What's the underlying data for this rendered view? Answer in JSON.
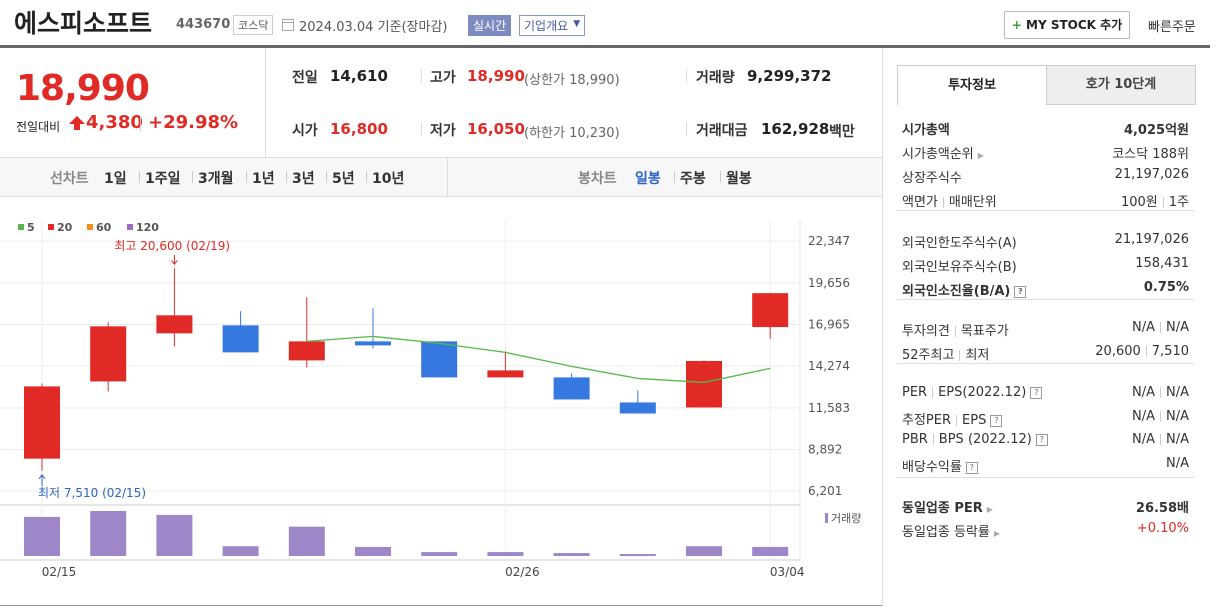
{
  "header": {
    "name": "에스피소프트",
    "code": "443670",
    "market": "코스닥",
    "date": "2024.03.04 기준(장마감)",
    "realtime": "실시간",
    "company": "기업개요",
    "mystock": "MY STOCK 추가",
    "quickorder": "빠른주문"
  },
  "price": {
    "current": "18,990",
    "change_label": "전일대비",
    "change": "4,380",
    "rate": "+29.98%"
  },
  "quote": [
    {
      "label": "전일",
      "value": "14,610"
    },
    {
      "label": "고가",
      "value": "18,990",
      "note": "(상한가 18,990)"
    },
    {
      "label": "거래량",
      "value": "9,299,372"
    },
    {
      "label": "시가",
      "value": "16,800"
    },
    {
      "label": "저가",
      "value": "16,050",
      "note": "(하한가 10,230)"
    },
    {
      "label": "거래대금",
      "value": "162,928",
      "unit": "백만"
    }
  ],
  "chart_tabs": {
    "line_label": "선차트",
    "periods": [
      "1일",
      "1주일",
      "3개월",
      "1년",
      "3년",
      "5년",
      "10년"
    ],
    "candle_label": "봉차트",
    "candles": [
      "일봉",
      "주봉",
      "월봉"
    ]
  },
  "chart_data": {
    "type": "candlestick",
    "categories": [
      "02/15",
      null,
      null,
      null,
      null,
      null,
      null,
      "02/26",
      null,
      null,
      null,
      "03/04"
    ],
    "open": [
      8300,
      13289,
      16395,
      16912,
      14648,
      15877,
      15877,
      13548,
      13548,
      11930,
      11607,
      16800
    ],
    "high": [
      13160,
      17106,
      20600,
      17818,
      18724,
      18012,
      15877,
      15230,
      13807,
      12707,
      14648,
      18990
    ],
    "low": [
      7510,
      12642,
      15554,
      15165,
      14195,
      15424,
      13548,
      13548,
      12124,
      11219,
      11607,
      16050
    ],
    "close": [
      12966,
      16847,
      17559,
      15165,
      15877,
      15618,
      13548,
      14001,
      12124,
      11219,
      14610,
      18990
    ],
    "up_color": "#e12a26",
    "down_color": "#3478e0",
    "series": [
      {
        "name": "5",
        "color": "#54b948",
        "values": [
          null,
          null,
          null,
          null,
          15877,
          16200,
          15748,
          15165,
          14260,
          13483,
          13224,
          14131
        ]
      },
      {
        "name": "20",
        "color": "#e12a26"
      },
      {
        "name": "60",
        "color": "#f68e1e"
      },
      {
        "name": "120",
        "color": "#9a6fc0"
      }
    ],
    "volume": {
      "name": "거래량",
      "color": "#9d87c9",
      "values": [
        40000000,
        46000000,
        42000000,
        10000000,
        30000000,
        9300000,
        4000000,
        4000000,
        3000000,
        2000000,
        10000000,
        9299372
      ]
    },
    "ylim": [
      5500,
      23200
    ],
    "yticks": [
      {
        "value": 6201,
        "label": "6,201"
      },
      {
        "value": 8892,
        "label": "8,892"
      },
      {
        "value": 11583,
        "label": "11,583"
      },
      {
        "value": 14274,
        "label": "14,274"
      },
      {
        "value": 16965,
        "label": "16,965"
      },
      {
        "value": 19656,
        "label": "19,656"
      },
      {
        "value": 22347,
        "label": "22,347"
      }
    ],
    "grid": true,
    "annotations": {
      "high": "최고 20,600 (02/19)",
      "low": "최저 7,510 (02/15)"
    }
  },
  "info": {
    "tabs": [
      "투자정보",
      "호가 10단계"
    ],
    "rows": [
      {
        "label": "시가총액",
        "value": "4,025억원"
      },
      {
        "label": "시가총액순위",
        "value": "코스닥 188위"
      },
      {
        "label": "상장주식수",
        "value": "21,197,026"
      },
      {
        "label": [
          "액면가",
          "매매단위"
        ],
        "value": [
          "100원",
          "1주"
        ]
      },
      {
        "label": "외국인한도주식수(A)",
        "value": "21,197,026"
      },
      {
        "label": "외국인보유주식수(B)",
        "value": "158,431"
      },
      {
        "label": "외국인소진율(B/A)",
        "value": "0.75%"
      },
      {
        "label": [
          "투자의견",
          "목표주가"
        ],
        "value": [
          "N/A",
          "N/A"
        ]
      },
      {
        "label": [
          "52주최고",
          "최저"
        ],
        "value": [
          "20,600",
          "7,510"
        ]
      },
      {
        "label": [
          "PER",
          "EPS(2022.12)"
        ],
        "value": [
          "N/A",
          "N/A"
        ]
      },
      {
        "label": [
          "추정PER",
          "EPS"
        ],
        "value": [
          "N/A",
          "N/A"
        ]
      },
      {
        "label": [
          "PBR",
          "BPS (2022.12)"
        ],
        "value": [
          "N/A",
          "N/A"
        ]
      },
      {
        "label": "배당수익률",
        "value": "N/A"
      },
      {
        "label": "동일업종 PER",
        "value": "26.58배"
      },
      {
        "label": "동일업종 등락률",
        "value": "+0.10%"
      }
    ]
  }
}
